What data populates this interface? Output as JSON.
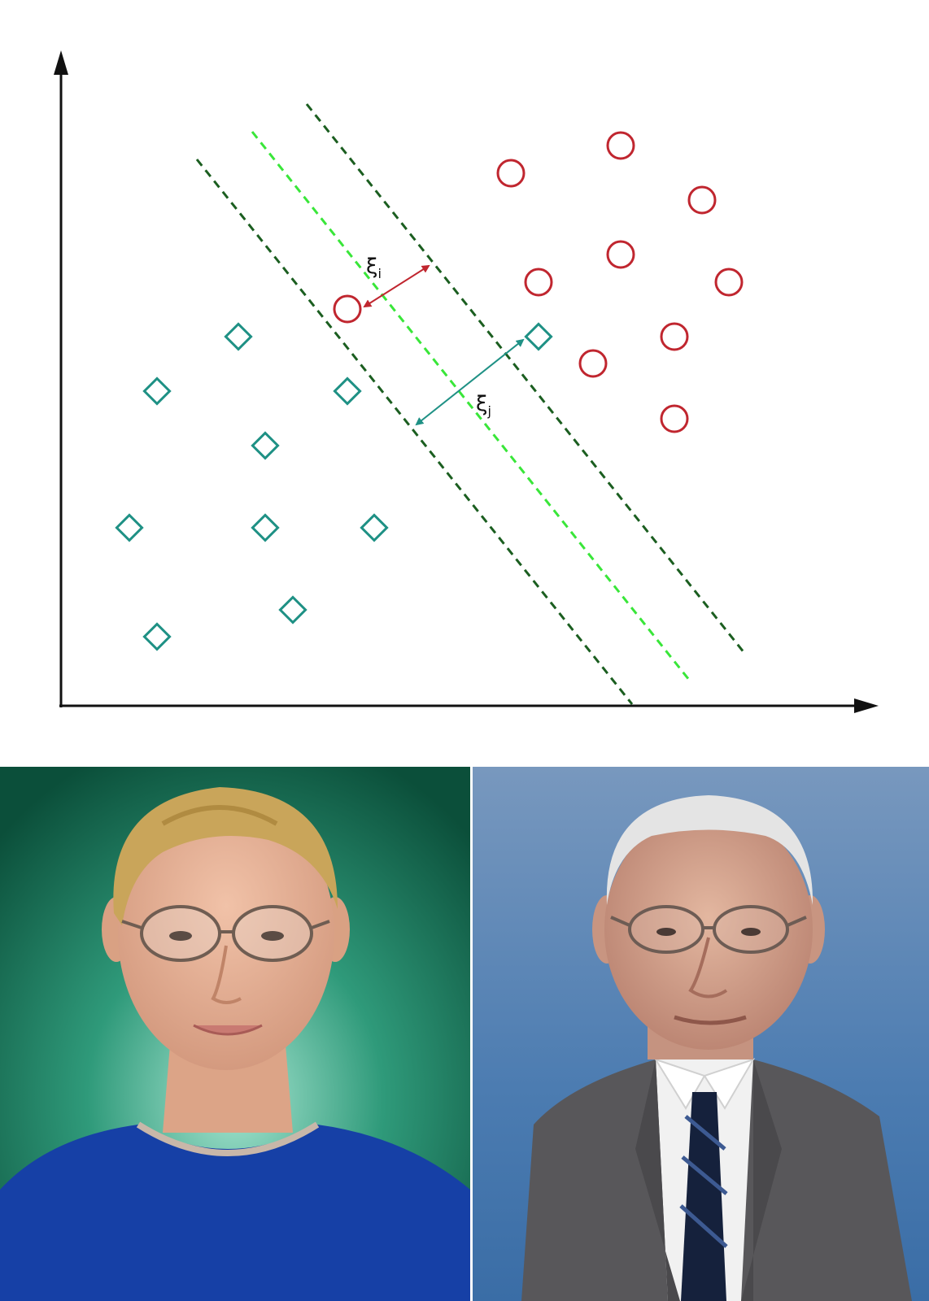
{
  "diagram": {
    "type": "svm-soft-margin",
    "colors": {
      "axis": "#111111",
      "circle_class": "#c0262f",
      "diamond_class": "#1f9185",
      "margin_line": "#1b5e20",
      "hyperplane": "#39e639",
      "slack_i_arrow": "#c0262f",
      "slack_j_arrow": "#1f9185"
    },
    "classes": [
      {
        "name": "circle-class",
        "marker": "circle",
        "count": 11,
        "color": "#c0262f"
      },
      {
        "name": "diamond-class",
        "marker": "diamond",
        "count": 11,
        "color": "#1f9185"
      }
    ],
    "lines": [
      {
        "name": "margin-line-lower",
        "style": "dashed",
        "color": "#1b5e20"
      },
      {
        "name": "separating-hyperplane",
        "style": "dashed",
        "color": "#39e639"
      },
      {
        "name": "margin-line-upper",
        "style": "dashed",
        "color": "#1b5e20"
      }
    ],
    "slack_labels": {
      "xi_i": {
        "symbol": "ξ",
        "subscript": "i"
      },
      "xi_j": {
        "symbol": "ξ",
        "subscript": "j"
      }
    }
  },
  "photos": {
    "left": {
      "background": "#0f6a50",
      "shirt": "#1640a6",
      "hair": "#c9a55a"
    },
    "right": {
      "background": "#4f7eb0",
      "suit": "#58575a",
      "tie": "#15213c",
      "hair": "#e4e4e4"
    }
  }
}
